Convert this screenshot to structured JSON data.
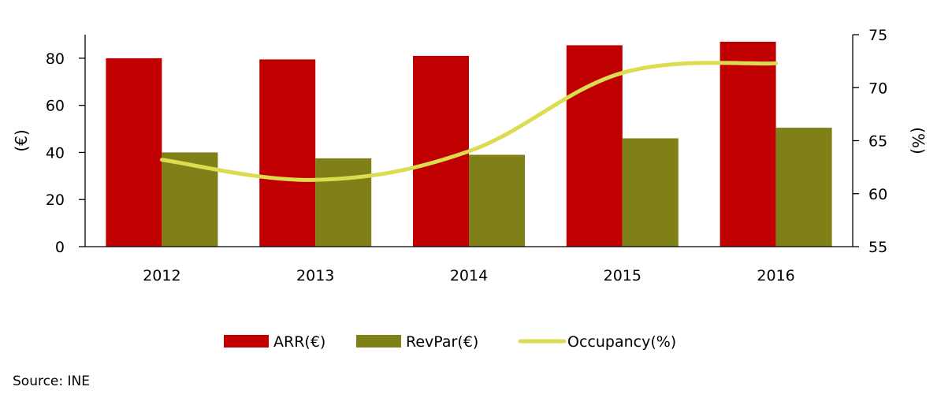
{
  "chart_data": {
    "type": "bar",
    "categories": [
      "2012",
      "2013",
      "2014",
      "2015",
      "2016"
    ],
    "series": [
      {
        "name": "ARR(€)",
        "type": "bar",
        "axis": "left",
        "color": "#C00000",
        "values": [
          80,
          79.5,
          81,
          85.5,
          87
        ]
      },
      {
        "name": "RevPar(€)",
        "type": "bar",
        "axis": "left",
        "color": "#808018",
        "values": [
          40,
          37.5,
          39,
          46,
          50.5
        ]
      },
      {
        "name": "Occupancy(%)",
        "type": "line",
        "axis": "right",
        "color": "#DCDC50",
        "values": [
          63.2,
          61.3,
          64.0,
          71.4,
          72.3
        ]
      }
    ],
    "ylabel": "(€)",
    "ylabel_right": "(%)",
    "ylim": [
      0,
      90
    ],
    "yticks": [
      0,
      20,
      40,
      60,
      80
    ],
    "ylim_right": [
      55,
      75
    ],
    "yticks_right": [
      55,
      60,
      65,
      70,
      75
    ],
    "grid": false,
    "legend_position": "bottom"
  },
  "source": "Source: INE"
}
